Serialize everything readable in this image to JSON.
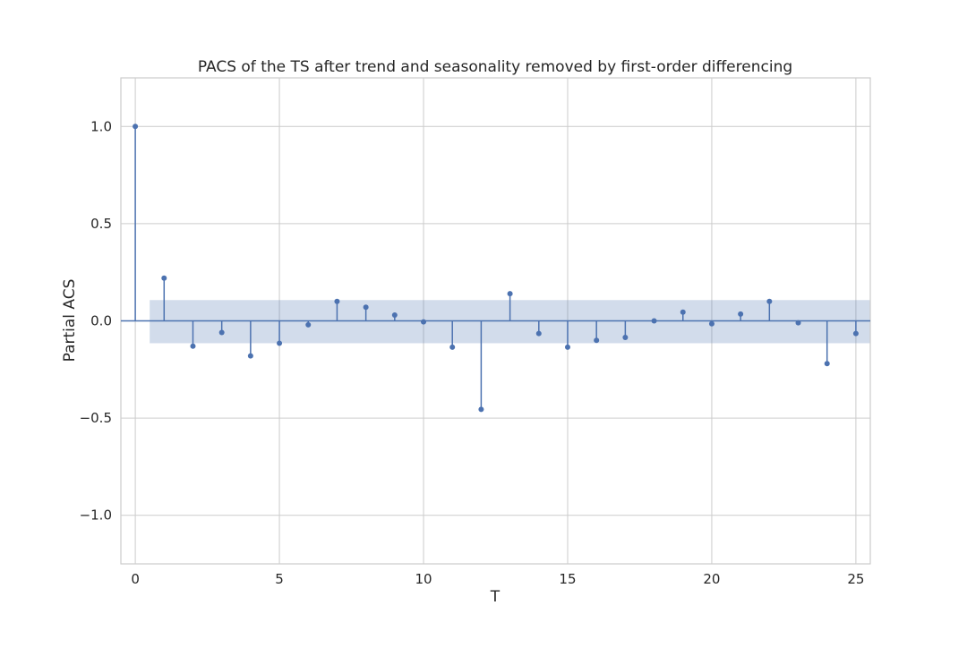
{
  "chart_data": {
    "type": "scatter",
    "title": "PACS of the TS after trend and seasonality removed by first-order differencing",
    "xlabel": "T",
    "ylabel": "Partial ACS",
    "xlim": [
      -0.5,
      25.5
    ],
    "ylim": [
      -1.25,
      1.25
    ],
    "x_ticks": [
      0,
      5,
      10,
      15,
      20,
      25
    ],
    "x_tick_labels": [
      "0",
      "5",
      "10",
      "15",
      "20",
      "25"
    ],
    "y_ticks": [
      1.0,
      0.5,
      0.0,
      -0.5,
      -1.0
    ],
    "y_tick_labels": [
      "1.0",
      "0.5",
      "0.0",
      "−0.5",
      "−1.0"
    ],
    "grid": true,
    "confidence_band": {
      "x_start": 0.5,
      "x_end": 25.5,
      "lower": -0.115,
      "upper": 0.107
    },
    "series": [
      {
        "x": [
          0,
          1,
          2,
          3,
          4,
          5,
          6,
          7,
          8,
          9,
          10,
          11,
          12,
          13,
          14,
          15,
          16,
          17,
          18,
          19,
          20,
          21,
          22,
          23,
          24,
          25
        ],
        "values": [
          1.0,
          0.22,
          -0.13,
          -0.06,
          -0.18,
          -0.115,
          -0.02,
          0.1,
          0.07,
          0.03,
          -0.005,
          -0.135,
          -0.455,
          0.14,
          -0.065,
          -0.135,
          -0.1,
          -0.085,
          0.0,
          0.045,
          -0.015,
          0.035,
          0.1,
          -0.01,
          -0.22,
          -0.065
        ]
      }
    ],
    "colors": {
      "series": "#4c72b0",
      "band": "#4c72b0",
      "grid": "#cccccc",
      "spine": "#cccccc",
      "zero_line": "#4c72b0"
    }
  }
}
